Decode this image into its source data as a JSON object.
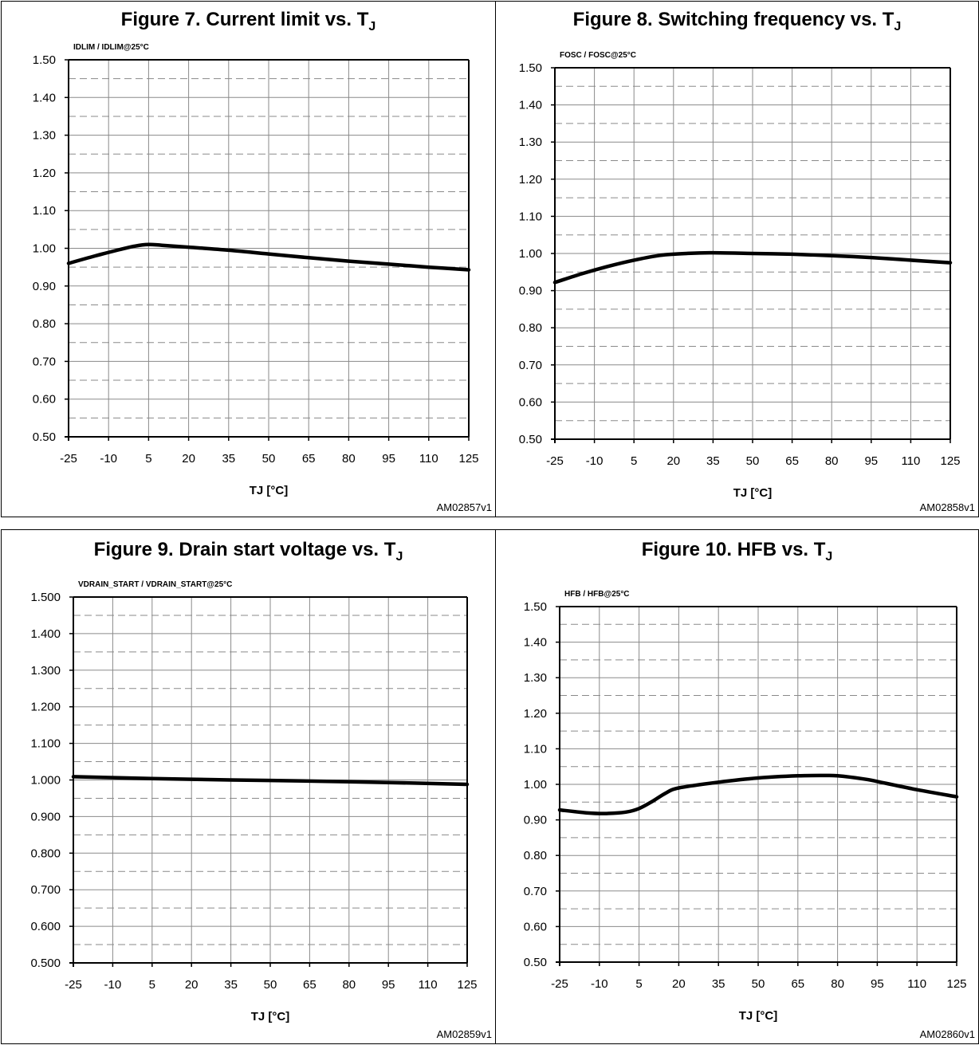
{
  "figures": [
    {
      "id": "p7",
      "title": "Figure 7. Current limit vs. T",
      "title_sub": "J",
      "code": "AM02857v1",
      "ylabel": "IDLIM / IDLIM@25°C",
      "xlabel": "TJ [°C]",
      "chart_data": {
        "type": "line",
        "x_ticks": [
          "-25",
          "-10",
          "5",
          "20",
          "35",
          "50",
          "65",
          "80",
          "95",
          "110",
          "125"
        ],
        "y_ticks": [
          "0.50",
          "0.60",
          "0.70",
          "0.80",
          "0.90",
          "1.00",
          "1.10",
          "1.20",
          "1.30",
          "1.40",
          "1.50"
        ],
        "xlim": [
          -25,
          125
        ],
        "ylim": [
          0.5,
          1.5
        ],
        "grid": true,
        "series": [
          {
            "x": [
              -25,
              -15,
              -5,
              0,
              5,
              10,
              20,
              35,
              50,
              65,
              80,
              95,
              110,
              125
            ],
            "y": [
              0.96,
              0.98,
              0.998,
              1.006,
              1.01,
              1.008,
              1.003,
              0.995,
              0.985,
              0.975,
              0.966,
              0.958,
              0.95,
              0.943
            ]
          }
        ]
      }
    },
    {
      "id": "p8",
      "title": "Figure 8. Switching frequency vs. T",
      "title_sub": "J",
      "code": "AM02858v1",
      "ylabel": "FOSC / FOSC@25°C",
      "xlabel": "TJ [°C]",
      "chart_data": {
        "type": "line",
        "x_ticks": [
          "-25",
          "-10",
          "5",
          "20",
          "35",
          "50",
          "65",
          "80",
          "95",
          "110",
          "125"
        ],
        "y_ticks": [
          "0.50",
          "0.60",
          "0.70",
          "0.80",
          "0.90",
          "1.00",
          "1.10",
          "1.20",
          "1.30",
          "1.40",
          "1.50"
        ],
        "xlim": [
          -25,
          125
        ],
        "ylim": [
          0.5,
          1.5
        ],
        "grid": true,
        "series": [
          {
            "x": [
              -25,
              -15,
              -5,
              5,
              15,
              25,
              35,
              50,
              65,
              80,
              95,
              110,
              125
            ],
            "y": [
              0.922,
              0.945,
              0.965,
              0.982,
              0.995,
              1.0,
              1.002,
              1.0,
              0.998,
              0.994,
              0.989,
              0.982,
              0.975
            ]
          }
        ]
      }
    },
    {
      "id": "p9",
      "title": "Figure 9. Drain start voltage vs. T",
      "title_sub": "J",
      "code": "AM02859v1",
      "ylabel": "VDRAIN_START / VDRAIN_START@25°C",
      "xlabel": "TJ [°C]",
      "chart_data": {
        "type": "line",
        "x_ticks": [
          "-25",
          "-10",
          "5",
          "20",
          "35",
          "50",
          "65",
          "80",
          "95",
          "110",
          "125"
        ],
        "y_ticks": [
          "0.500",
          "0.600",
          "0.700",
          "0.800",
          "0.900",
          "1.000",
          "1.100",
          "1.200",
          "1.300",
          "1.400",
          "1.500"
        ],
        "xlim": [
          -25,
          125
        ],
        "ylim": [
          0.5,
          1.5
        ],
        "grid": true,
        "series": [
          {
            "x": [
              -25,
              5,
              35,
              65,
              95,
              125
            ],
            "y": [
              1.009,
              1.004,
              1.0,
              0.997,
              0.993,
              0.988
            ]
          }
        ]
      }
    },
    {
      "id": "p10",
      "title": "Figure 10. HFB vs. T",
      "title_sub": "J",
      "code": "AM02860v1",
      "ylabel": "HFB / HFB@25°C",
      "xlabel": "TJ [°C]",
      "chart_data": {
        "type": "line",
        "x_ticks": [
          "-25",
          "-10",
          "5",
          "20",
          "35",
          "50",
          "65",
          "80",
          "95",
          "110",
          "125"
        ],
        "y_ticks": [
          "0.50",
          "0.60",
          "0.70",
          "0.80",
          "0.90",
          "1.00",
          "1.10",
          "1.20",
          "1.30",
          "1.40",
          "1.50"
        ],
        "xlim": [
          -25,
          125
        ],
        "ylim": [
          0.5,
          1.5
        ],
        "grid": true,
        "series": [
          {
            "x": [
              -25,
              -15,
              -8,
              0,
              5,
              10,
              15,
              20,
              35,
              50,
              65,
              75,
              80,
              90,
              95,
              110,
              125
            ],
            "y": [
              0.928,
              0.92,
              0.918,
              0.922,
              0.932,
              0.952,
              0.975,
              0.99,
              1.006,
              1.018,
              1.024,
              1.025,
              1.024,
              1.015,
              1.008,
              0.985,
              0.965
            ]
          }
        ]
      }
    }
  ]
}
